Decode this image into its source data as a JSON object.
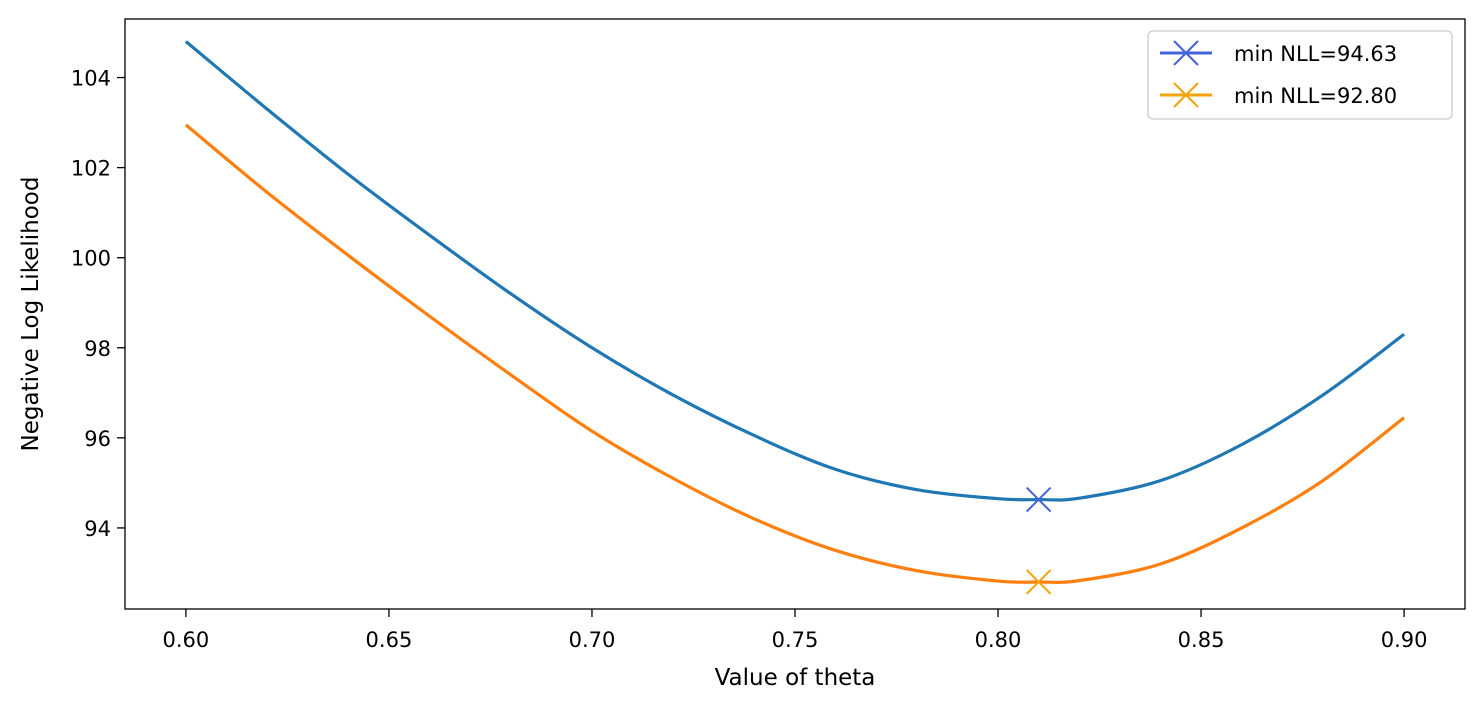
{
  "chart_data": {
    "type": "line",
    "title": "",
    "xlabel": "Value of theta",
    "ylabel": "Negative Log Likelihood",
    "xlim": [
      0.585,
      0.915
    ],
    "ylim": [
      92.2,
      105.3
    ],
    "xticks": [
      0.6,
      0.65,
      0.7,
      0.75,
      0.8,
      0.85,
      0.9
    ],
    "xtick_labels": [
      "0.60",
      "0.65",
      "0.70",
      "0.75",
      "0.80",
      "0.85",
      "0.90"
    ],
    "yticks": [
      94,
      96,
      98,
      100,
      102,
      104
    ],
    "ytick_labels": [
      "94",
      "96",
      "98",
      "100",
      "102",
      "104"
    ],
    "grid": false,
    "legend_position": "top-right",
    "x": [
      0.6,
      0.62,
      0.64,
      0.66,
      0.68,
      0.7,
      0.72,
      0.74,
      0.76,
      0.78,
      0.8,
      0.81,
      0.82,
      0.84,
      0.86,
      0.88,
      0.9
    ],
    "series": [
      {
        "color": "#1f77b4",
        "values": [
          104.8,
          103.3,
          101.85,
          100.5,
          99.2,
          98.0,
          96.95,
          96.05,
          95.3,
          94.85,
          94.65,
          94.63,
          94.66,
          95.05,
          95.85,
          96.95,
          98.3
        ]
      },
      {
        "color": "#ff7f0e",
        "values": [
          102.95,
          101.45,
          100.05,
          98.7,
          97.4,
          96.15,
          95.1,
          94.2,
          93.5,
          93.05,
          92.82,
          92.8,
          92.83,
          93.2,
          94.0,
          95.05,
          96.45
        ]
      }
    ],
    "markers": [
      {
        "label": "min NLL=94.63",
        "x": 0.81,
        "y": 94.63,
        "color": "#4363d8",
        "symbol": "x"
      },
      {
        "label": "min NLL=92.80",
        "x": 0.81,
        "y": 92.8,
        "color": "#f5a30a",
        "symbol": "x"
      }
    ]
  }
}
